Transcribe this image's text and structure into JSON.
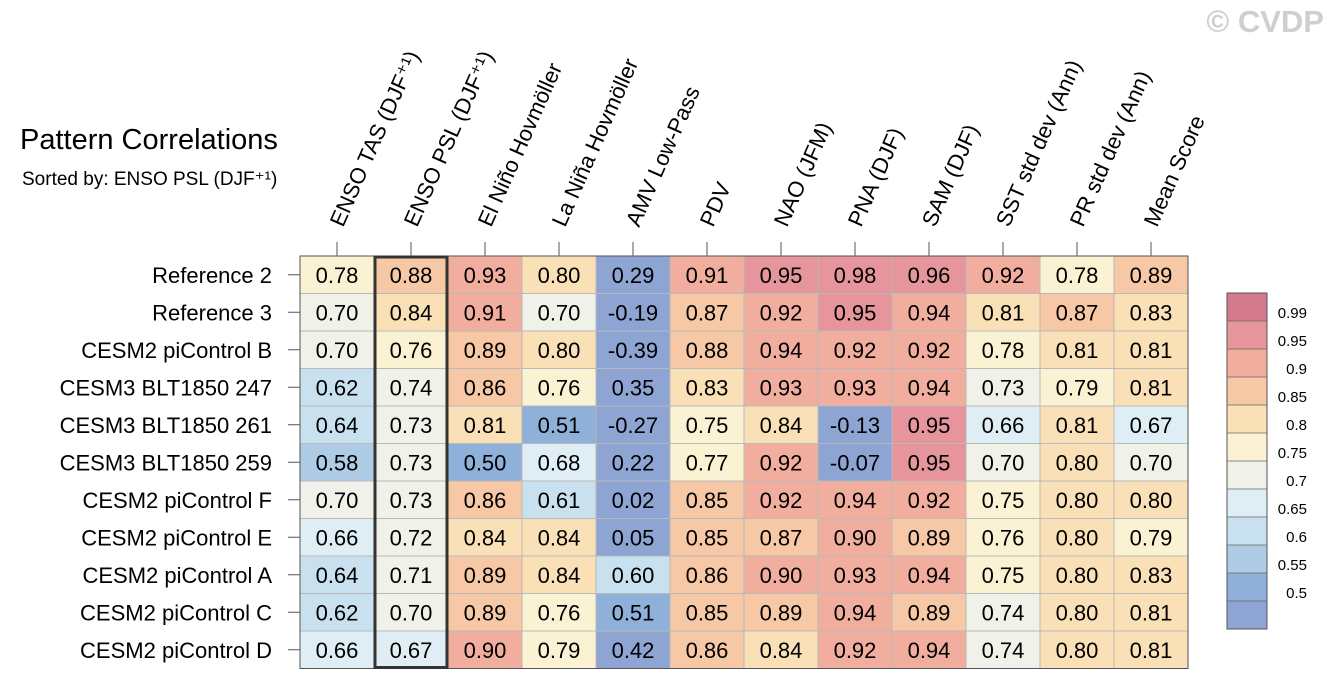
{
  "watermark": "© CVDP",
  "chart_data": {
    "type": "heatmap",
    "title": "Pattern Correlations",
    "subtitle": "Sorted by: ENSO PSL (DJF⁺¹)",
    "columns": [
      "ENSO TAS (DJF⁺¹)",
      "ENSO PSL (DJF⁺¹)",
      "El Niño Hovmöller",
      "La Niña Hovmöller",
      "AMV Low-Pass",
      "PDV",
      "NAO (JFM)",
      "PNA (DJF)",
      "SAM (DJF)",
      "SST std dev (Ann)",
      "PR std dev (Ann)",
      "Mean Score"
    ],
    "highlighted_column": 1,
    "rows": [
      "Reference 2",
      "Reference 3",
      "CESM2 piControl B",
      "CESM3 BLT1850 247",
      "CESM3 BLT1850 261",
      "CESM3 BLT1850 259",
      "CESM2 piControl F",
      "CESM2 piControl E",
      "CESM2 piControl A",
      "CESM2 piControl C",
      "CESM2 piControl D"
    ],
    "values": [
      [
        "0.78",
        "0.88",
        "0.93",
        "0.80",
        "0.29",
        "0.91",
        "0.95",
        "0.98",
        "0.96",
        "0.92",
        "0.78",
        "0.89"
      ],
      [
        "0.70",
        "0.84",
        "0.91",
        "0.70",
        "-0.19",
        "0.87",
        "0.92",
        "0.95",
        "0.94",
        "0.81",
        "0.87",
        "0.83"
      ],
      [
        "0.70",
        "0.76",
        "0.89",
        "0.80",
        "-0.39",
        "0.88",
        "0.94",
        "0.92",
        "0.92",
        "0.78",
        "0.81",
        "0.81"
      ],
      [
        "0.62",
        "0.74",
        "0.86",
        "0.76",
        "0.35",
        "0.83",
        "0.93",
        "0.93",
        "0.94",
        "0.73",
        "0.79",
        "0.81"
      ],
      [
        "0.64",
        "0.73",
        "0.81",
        "0.51",
        "-0.27",
        "0.75",
        "0.84",
        "-0.13",
        "0.95",
        "0.66",
        "0.81",
        "0.67"
      ],
      [
        "0.58",
        "0.73",
        "0.50",
        "0.68",
        "0.22",
        "0.77",
        "0.92",
        "-0.07",
        "0.95",
        "0.70",
        "0.80",
        "0.70"
      ],
      [
        "0.70",
        "0.73",
        "0.86",
        "0.61",
        "0.02",
        "0.85",
        "0.92",
        "0.94",
        "0.92",
        "0.75",
        "0.80",
        "0.80"
      ],
      [
        "0.66",
        "0.72",
        "0.84",
        "0.84",
        "0.05",
        "0.85",
        "0.87",
        "0.90",
        "0.89",
        "0.76",
        "0.80",
        "0.79"
      ],
      [
        "0.64",
        "0.71",
        "0.89",
        "0.84",
        "0.60",
        "0.86",
        "0.90",
        "0.93",
        "0.94",
        "0.75",
        "0.80",
        "0.83"
      ],
      [
        "0.62",
        "0.70",
        "0.89",
        "0.76",
        "0.51",
        "0.85",
        "0.89",
        "0.94",
        "0.89",
        "0.74",
        "0.80",
        "0.81"
      ],
      [
        "0.66",
        "0.67",
        "0.90",
        "0.79",
        "0.42",
        "0.86",
        "0.84",
        "0.92",
        "0.94",
        "0.74",
        "0.80",
        "0.81"
      ]
    ],
    "colorbar": {
      "labels": [
        "0.99",
        "0.95",
        "0.9",
        "0.85",
        "0.8",
        "0.75",
        "0.7",
        "0.65",
        "0.6",
        "0.55",
        "0.5"
      ],
      "colors": [
        "#d47a8e",
        "#e5959b",
        "#f1ae9e",
        "#f6c8a5",
        "#fae0b6",
        "#faf2d3",
        "#f0f1e9",
        "#deeef4",
        "#c9e1ef",
        "#aecce6",
        "#8fb0d8",
        "#8ea4d2"
      ]
    }
  }
}
